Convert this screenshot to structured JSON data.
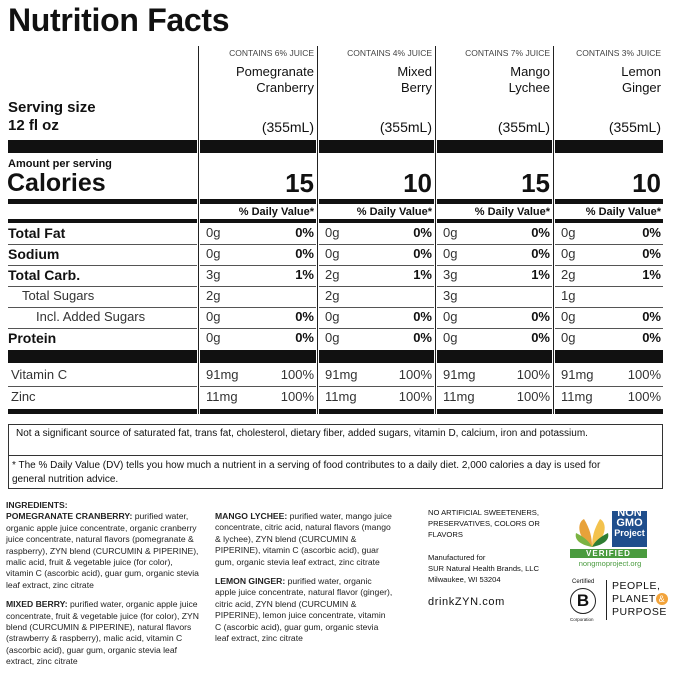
{
  "title": "Nutrition Facts",
  "serving": {
    "label": "Serving size",
    "size": "12 fl oz"
  },
  "amount_per_serving": "Amount per serving",
  "calories_label": "Calories",
  "nutrient_labels": [
    "Total Fat",
    "Sodium",
    "Total Carb.",
    "Total Sugars",
    "Incl. Added Sugars",
    "Protein"
  ],
  "vitamin_labels": [
    "Vitamin C",
    "Zinc"
  ],
  "products": [
    {
      "juice": "CONTAINS 6% JUICE",
      "name": [
        "Pomegranate",
        "Cranberry"
      ],
      "volume": "(355mL)",
      "calories": 15,
      "dv_header": "% Daily Value*",
      "nutrients": [
        {
          "amount": "0g",
          "dv": "0%"
        },
        {
          "amount": "0g",
          "dv": "0%"
        },
        {
          "amount": "3g",
          "dv": "1%"
        },
        {
          "amount": "2g"
        },
        {
          "amount": "0g",
          "dv": "0%"
        },
        {
          "amount": "0g",
          "dv": "0%"
        }
      ],
      "vitamins": [
        {
          "amount": "91mg",
          "dv": "100%"
        },
        {
          "amount": "11mg",
          "dv": "100%"
        }
      ]
    },
    {
      "juice": "CONTAINS 4% JUICE",
      "name": [
        "Mixed",
        "Berry"
      ],
      "volume": "(355mL)",
      "calories": 10,
      "dv_header": "% Daily Value*",
      "nutrients": [
        {
          "amount": "0g",
          "dv": "0%"
        },
        {
          "amount": "0g",
          "dv": "0%"
        },
        {
          "amount": "2g",
          "dv": "1%"
        },
        {
          "amount": "2g"
        },
        {
          "amount": "0g",
          "dv": "0%"
        },
        {
          "amount": "0g",
          "dv": "0%"
        }
      ],
      "vitamins": [
        {
          "amount": "91mg",
          "dv": "100%"
        },
        {
          "amount": "11mg",
          "dv": "100%"
        }
      ]
    },
    {
      "juice": "CONTAINS 7% JUICE",
      "name": [
        "Mango",
        "Lychee"
      ],
      "volume": "(355mL)",
      "calories": 15,
      "dv_header": "% Daily Value*",
      "nutrients": [
        {
          "amount": "0g",
          "dv": "0%"
        },
        {
          "amount": "0g",
          "dv": "0%"
        },
        {
          "amount": "3g",
          "dv": "1%"
        },
        {
          "amount": "3g"
        },
        {
          "amount": "0g",
          "dv": "0%"
        },
        {
          "amount": "0g",
          "dv": "0%"
        }
      ],
      "vitamins": [
        {
          "amount": "91mg",
          "dv": "100%"
        },
        {
          "amount": "11mg",
          "dv": "100%"
        }
      ]
    },
    {
      "juice": "CONTAINS 3% JUICE",
      "name": [
        "Lemon",
        "Ginger"
      ],
      "volume": "(355mL)",
      "calories": 10,
      "dv_header": "% Daily Value*",
      "nutrients": [
        {
          "amount": "0g",
          "dv": "0%"
        },
        {
          "amount": "0g",
          "dv": "0%"
        },
        {
          "amount": "2g",
          "dv": "1%"
        },
        {
          "amount": "1g"
        },
        {
          "amount": "0g",
          "dv": "0%"
        },
        {
          "amount": "0g",
          "dv": "0%"
        }
      ],
      "vitamins": [
        {
          "amount": "91mg",
          "dv": "100%"
        },
        {
          "amount": "11mg",
          "dv": "100%"
        }
      ]
    }
  ],
  "footnotes": [
    "Not a significant source of saturated fat, trans fat, cholesterol, dietary fiber, added sugars, vitamin D, calcium, iron and potassium.",
    "* The % Daily Value (DV) tells you how much a nutrient in a serving of food contributes to a daily diet. 2,000 calories a day is used for general nutrition advice."
  ],
  "ingredients": {
    "heading": "INGREDIENTS:",
    "entries": [
      {
        "name": "POMEGRANATE CRANBERRY:",
        "text": "purified water, organic apple juice concentrate, organic cranberry juice concentrate, natural flavors (pomegranate & raspberry), ZYN blend (CURCUMIN & PIPERINE), malic acid, fruit & vegetable juice (for color), vitamin C (ascorbic acid), guar gum, organic stevia leaf extract, zinc citrate"
      },
      {
        "name": "MIXED BERRY:",
        "text": "purified water, organic apple juice concentrate, fruit & vegetable juice (for color), ZYN blend (CURCUMIN & PIPERINE), natural flavors (strawberry & raspberry), malic acid, vitamin C (ascorbic acid), guar gum, organic stevia leaf extract, zinc citrate"
      },
      {
        "name": "MANGO LYCHEE:",
        "text": "purified water, mango juice concentrate, citric acid, natural flavors (mango & lychee), ZYN blend (CURCUMIN & PIPERINE), vitamin C (ascorbic acid), guar gum, organic stevia leaf extract, zinc citrate"
      },
      {
        "name": "LEMON GINGER:",
        "text": "purified water, organic apple juice concentrate, natural flavor (ginger), citric acid, ZYN blend (CURCUMIN & PIPERINE), lemon juice concentrate, vitamin C (ascorbic acid), guar gum, organic stevia leaf extract, zinc citrate"
      }
    ]
  },
  "claims": "NO ARTIFICIAL SWEETENERS, PRESERVATIVES, COLORS OR FLAVORS",
  "manufacturer": [
    "Manufactured for",
    "SUR Natural Health Brands, LLC",
    "Milwaukee, WI 53204"
  ],
  "website": "drinkZYN.com",
  "non_gmo": {
    "lines": [
      "NON",
      "GMO",
      "Project"
    ],
    "verified": "VERIFIED",
    "url": "nongmoproject.org"
  },
  "b_corp": {
    "certified": "Certified",
    "letter": "B",
    "corporation": "Corporation",
    "tagline": [
      "PEOPLE,",
      "PLANET",
      "&",
      "PURPOSE"
    ]
  }
}
